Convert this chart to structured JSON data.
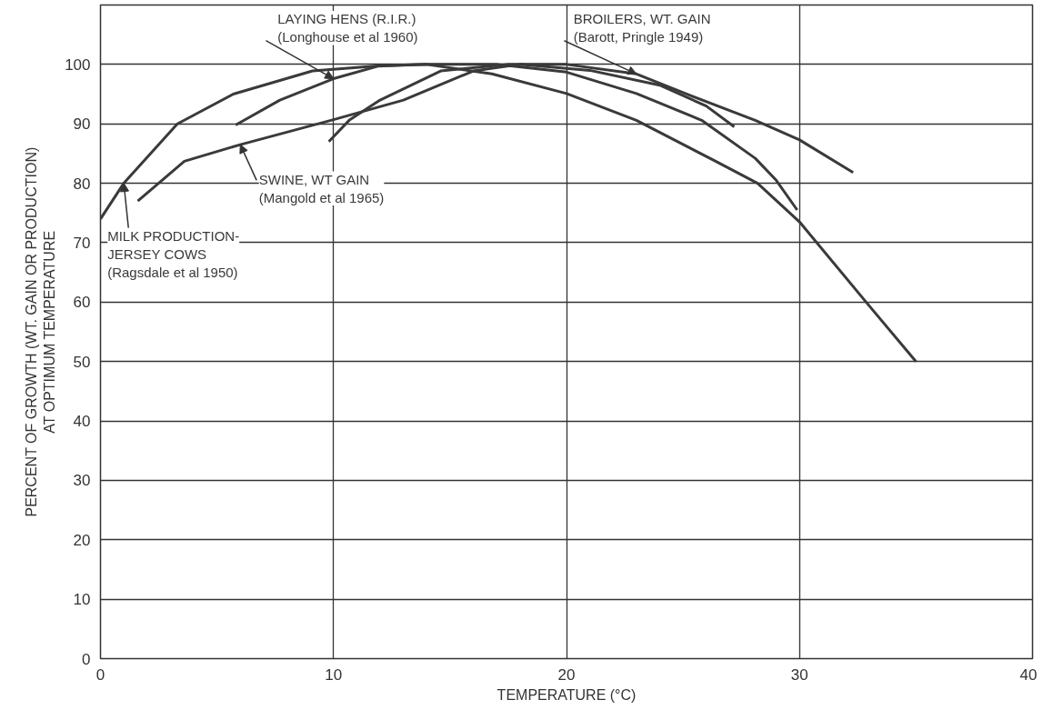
{
  "chart_data": {
    "type": "line",
    "xlabel": "TEMPERATURE (°C)",
    "ylabel": "PERCENT OF GROWTH (WT. GAIN OR PRODUCTION)\nAT OPTIMUM TEMPERATURE",
    "xlim": [
      0,
      40
    ],
    "ylim": [
      0,
      110
    ],
    "xticks": [
      0,
      10,
      20,
      30,
      40
    ],
    "yticks": [
      0,
      10,
      20,
      30,
      40,
      50,
      60,
      70,
      80,
      90,
      100
    ],
    "grid": true,
    "series": [
      {
        "name": "LAYING HENS (R.I.R.)\n(Longhouse et al 1960)",
        "color": "#3a3a3a",
        "x": [
          5.8,
          7.7,
          10,
          11.9,
          14,
          17,
          20,
          23,
          25.8,
          28.1,
          29,
          29.9
        ],
        "values": [
          89.8,
          94,
          97.6,
          99.7,
          100,
          100,
          98.7,
          95.1,
          90.6,
          84.2,
          80.5,
          75.5
        ]
      },
      {
        "name": "BROILERS, WT. GAIN\n(Barott, Pringle 1949)",
        "color": "#3a3a3a",
        "x": [
          9.8,
          10.7,
          12,
          14.6,
          17.5,
          20,
          23,
          25.3,
          28.1,
          30,
          32.3
        ],
        "values": [
          87,
          90.7,
          94,
          98.9,
          100,
          100,
          98.4,
          94.8,
          90.6,
          87.3,
          81.8
        ]
      },
      {
        "name": "MILK PRODUCTION-\nJERSEY COWS\n(Ragsdale et al 1950)",
        "color": "#3a3a3a",
        "x": [
          0,
          1,
          3.3,
          5.7,
          9.1,
          12,
          14,
          16.8,
          20,
          23,
          26.4,
          28.2,
          30,
          32.9,
          35
        ],
        "values": [
          74,
          80,
          90,
          95,
          98.9,
          99.8,
          100,
          98.4,
          95.1,
          90.6,
          83.7,
          80,
          73.5,
          59.8,
          50
        ]
      },
      {
        "name": "SWINE, WT GAIN\n(Mangold et al 1965)",
        "color": "#3a3a3a",
        "x": [
          1.6,
          3.6,
          6,
          10,
          13,
          16,
          18,
          21,
          24,
          26,
          27.2
        ],
        "values": [
          77,
          83.7,
          86.5,
          90.7,
          94,
          98.9,
          100,
          99,
          96.5,
          93,
          89.5
        ]
      }
    ]
  }
}
